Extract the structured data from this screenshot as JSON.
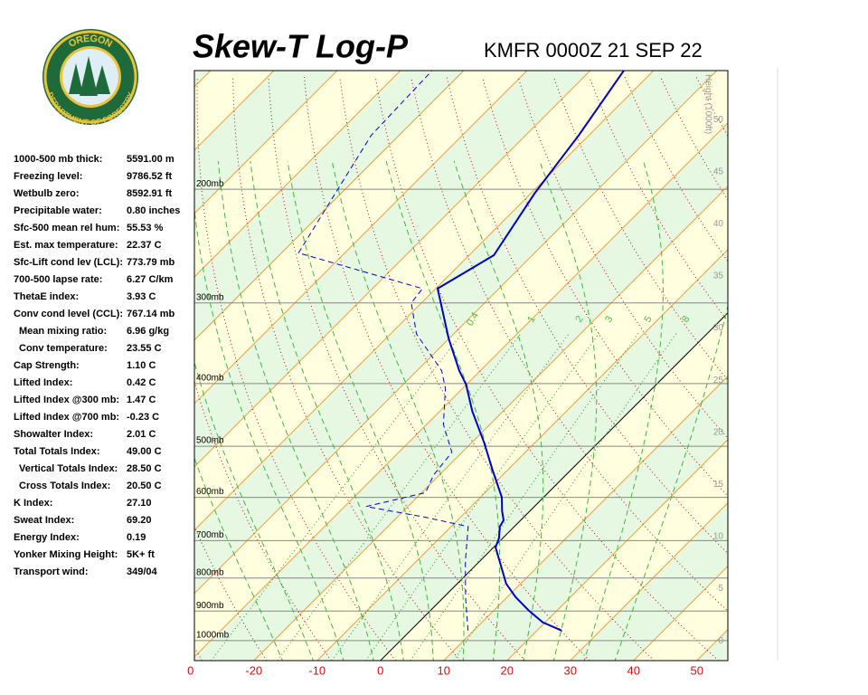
{
  "logo": {
    "top": "OREGON",
    "bottom": "DEPARTMENT OF FORESTRY"
  },
  "chart_data": {
    "type": "skewt",
    "title": "Skew-T Log-P",
    "subtitle": "KMFR 0000Z 21 SEP 22",
    "ylog": true,
    "ylim": [
      1074,
      131
    ],
    "yticks": [
      {
        "value": 1000,
        "label": "1000mb"
      },
      {
        "value": 900,
        "label": "900mb"
      },
      {
        "value": 800,
        "label": "800mb"
      },
      {
        "value": 700,
        "label": "700mb"
      },
      {
        "value": 600,
        "label": "600mb"
      },
      {
        "value": 500,
        "label": "500mb"
      },
      {
        "value": 400,
        "label": "400mb"
      },
      {
        "value": 300,
        "label": "300mb"
      },
      {
        "value": 200,
        "label": "200mb"
      }
    ],
    "xlim": [
      -29.4,
      54.9
    ],
    "xticks": [
      {
        "value": -30,
        "label": "0"
      },
      -20,
      -10,
      0,
      10,
      20,
      30,
      40,
      50
    ],
    "y2label": "Height (1000ft)",
    "y2lim": [
      -1.9,
      54.7
    ],
    "y2ticks": [
      0,
      5,
      10,
      15,
      20,
      25,
      30,
      35,
      40,
      45,
      50
    ],
    "mixing_ratios": [
      0.4,
      1,
      2,
      3,
      5,
      8
    ],
    "series": [
      {
        "color": "#0000cc",
        "dashed": false,
        "values": [
          965,
          937,
          899,
          856,
          816,
          717,
          694,
          666,
          651,
          630,
          600,
          545,
          494,
          441,
          401,
          382,
          341,
          285,
          253,
          203,
          165,
          131
        ],
        "x": [
          23.9,
          19.6,
          15.6,
          11.3,
          7.7,
          0.3,
          -0.6,
          -2.3,
          -2.7,
          -4.4,
          -6.6,
          -12.3,
          -18.0,
          -24.9,
          -30.1,
          -33.3,
          -40.0,
          -49.7,
          -46.1,
          -49.4,
          -51.6,
          -54.7
        ]
      },
      {
        "color": "#0000cc",
        "dashed": true,
        "values": [
          965,
          856,
          753,
          666,
          644,
          620,
          590,
          554,
          511,
          463,
          407,
          382,
          335,
          300,
          285,
          251,
          203,
          165,
          131
        ],
        "x": [
          9.1,
          3.4,
          -2.3,
          -7.3,
          -15.6,
          -26.6,
          -19.4,
          -20.9,
          -21.6,
          -27.3,
          -32.7,
          -36.1,
          -45.9,
          -51.6,
          -52.1,
          -77.3,
          -80.9,
          -84.4,
          -85.0
        ]
      }
    ]
  },
  "stats": [
    {
      "label": "1000-500 mb thick:",
      "value": "5591.00 m"
    },
    {
      "label": "Freezing level:",
      "value": "9786.52 ft"
    },
    {
      "label": "Wetbulb zero:",
      "value": "8592.91 ft"
    },
    {
      "label": "Precipitable water:",
      "value": "0.80 inches"
    },
    {
      "label": "Sfc-500 mean rel hum:",
      "value": "55.53 %"
    },
    {
      "label": "Est. max temperature:",
      "value": "22.37 C"
    },
    {
      "label": "Sfc-Lift cond lev (LCL):",
      "value": "773.79 mb"
    },
    {
      "label": "700-500 lapse rate:",
      "value": "6.27 C/km"
    },
    {
      "label": "ThetaE index:",
      "value": "3.93 C"
    },
    {
      "label": "Conv cond level (CCL):",
      "value": "767.14 mb"
    },
    {
      "label": "Mean mixing ratio:",
      "value": "6.96 g/kg"
    },
    {
      "label": "Conv temperature:",
      "value": "23.55 C"
    },
    {
      "label": "Cap Strength:",
      "value": "1.10 C"
    },
    {
      "label": "Lifted Index:",
      "value": "0.42 C"
    },
    {
      "label": "Lifted Index @300 mb:",
      "value": "1.47 C"
    },
    {
      "label": "Lifted Index @700 mb:",
      "value": "-0.23 C"
    },
    {
      "label": "Showalter Index:",
      "value": "2.01 C"
    },
    {
      "label": "Total Totals Index:",
      "value": "49.00 C"
    },
    {
      "label": "Vertical Totals Index:",
      "value": "28.50 C"
    },
    {
      "label": "Cross Totals Index:",
      "value": "20.50 C"
    },
    {
      "label": "K Index:",
      "value": "27.10"
    },
    {
      "label": "Sweat Index:",
      "value": "69.20"
    },
    {
      "label": "Energy Index:",
      "value": "0.19"
    },
    {
      "label": "Yonker Mixing Height:",
      "value": "5K+ ft"
    },
    {
      "label": "Transport wind:",
      "value": "349/04"
    }
  ]
}
